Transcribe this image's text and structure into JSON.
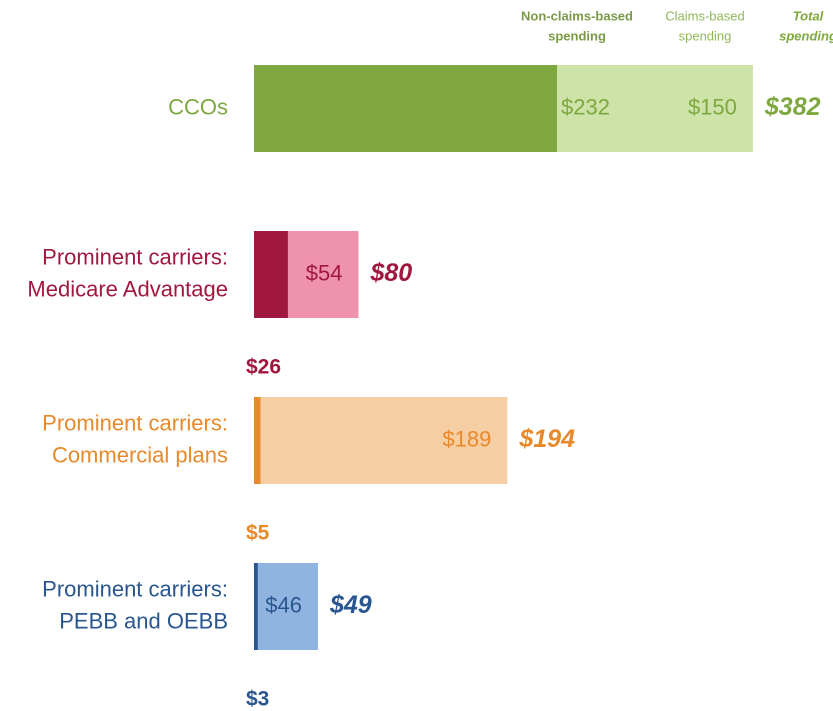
{
  "chart_data": {
    "type": "bar",
    "orientation": "horizontal",
    "stacked": true,
    "categories": [
      [
        "CCOs"
      ],
      [
        "Prominent carriers:",
        "Medicare Advantage"
      ],
      [
        "Prominent carriers:",
        "Commercial plans"
      ],
      [
        "Prominent carriers:",
        "PEBB and OEBB"
      ]
    ],
    "label_colors": [
      "#7ea83f",
      "#a0183f",
      "#e8892b",
      "#2a5690"
    ],
    "series": [
      {
        "name": [
          "Non-claims-based",
          "spending"
        ],
        "colors": [
          "#7ea83f",
          "#a0183f",
          "#e8892b",
          "#2a5690"
        ],
        "header_color": "#7a9a4a",
        "values": [
          232,
          26,
          5,
          3
        ],
        "value_labels": [
          "$232",
          "$26",
          "$5",
          "$3"
        ]
      },
      {
        "name": [
          "Claims-based",
          "spending"
        ],
        "colors": [
          "#cde3a8",
          "#ef92ad",
          "#f5cfa3",
          "#8fb4e0"
        ],
        "header_color": "#8fb85a",
        "values": [
          150,
          54,
          189,
          46
        ],
        "value_labels": [
          "$150",
          "$54",
          "$189",
          "$46"
        ]
      }
    ],
    "totals": {
      "name": [
        "Total",
        "spending"
      ],
      "header_color": "#7ea83f",
      "values": [
        382,
        80,
        194,
        49
      ],
      "value_labels": [
        "$382",
        "$80",
        "$194",
        "$49"
      ]
    }
  }
}
